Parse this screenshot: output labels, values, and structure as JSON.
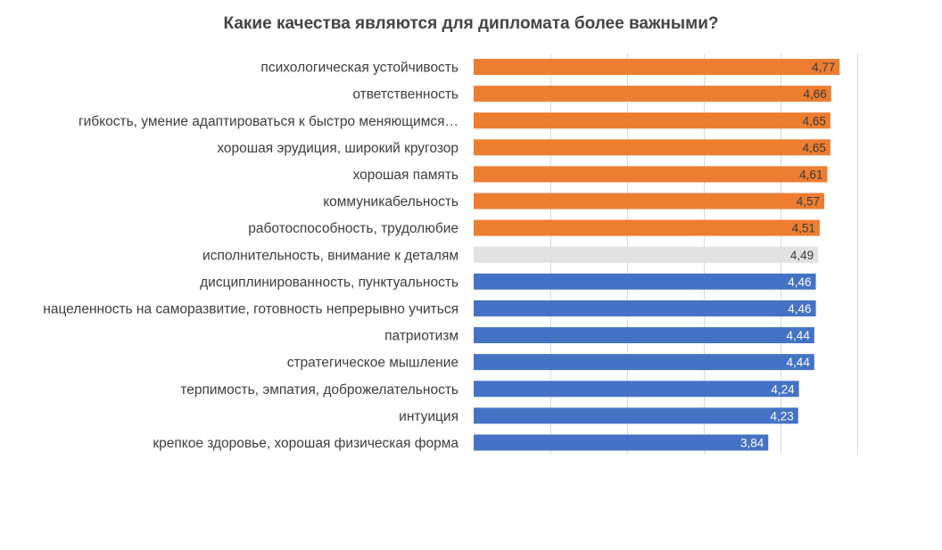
{
  "chart_data": {
    "type": "bar",
    "orientation": "horizontal",
    "title": "Какие качества являются для дипломата более важными?",
    "xlabel": "",
    "ylabel": "",
    "xlim": [
      0,
      5
    ],
    "grid": true,
    "legend": "none",
    "categories": [
      "психологическая  устойчивость",
      "ответственность",
      "гибкость, умение адаптироваться к быстро меняющимся…",
      "хорошая эрудиция, широкий кругозор",
      "хорошая память",
      "коммуникабельность",
      "работоспособность, трудолюбие",
      "исполнительность, внимание к деталям",
      "дисциплинированность, пунктуальность",
      "нацеленность на саморазвитие, готовность непрерывно учиться",
      "патриотизм",
      "стратегическое мышление",
      "терпимость, эмпатия, доброжелательность",
      "интуиция",
      "крепкое здоровье, хорошая физическая форма"
    ],
    "values": [
      4.77,
      4.66,
      4.65,
      4.65,
      4.61,
      4.57,
      4.51,
      4.49,
      4.46,
      4.46,
      4.44,
      4.44,
      4.24,
      4.23,
      3.84
    ],
    "value_labels": [
      "4,77",
      "4,66",
      "4,65",
      "4,65",
      "4,61",
      "4,57",
      "4,51",
      "4,49",
      "4,46",
      "4,46",
      "4,44",
      "4,44",
      "4,24",
      "4,23",
      "3,84"
    ],
    "bar_groups": [
      "high",
      "high",
      "high",
      "high",
      "high",
      "high",
      "high",
      "mid",
      "low",
      "low",
      "low",
      "low",
      "low",
      "low",
      "low"
    ],
    "colors": {
      "high": "#ed7d31",
      "mid": "#e2e2e2",
      "low": "#4472c4",
      "label_on_high": "#3b3b3b",
      "label_on_mid": "#3b3b3b",
      "label_on_low": "#ffffff",
      "grid": "#d9d9d9"
    }
  }
}
